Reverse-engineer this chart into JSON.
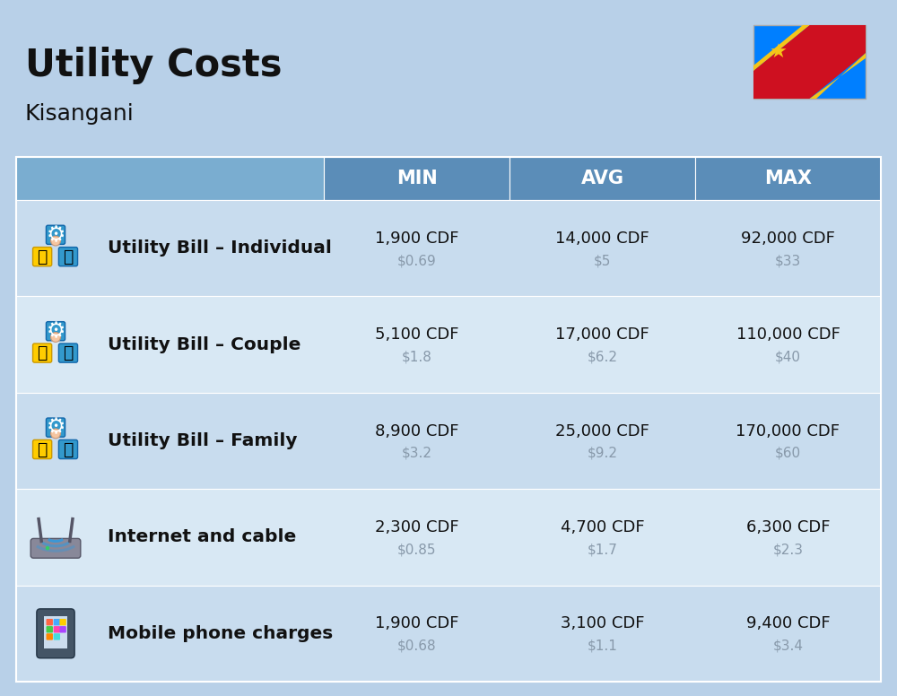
{
  "title": "Utility Costs",
  "subtitle": "Kisangani",
  "background_color": "#b8d0e8",
  "header_color": "#5b8db8",
  "header_text_color": "#ffffff",
  "row_color_odd": "#c8dcee",
  "row_color_even": "#d8e8f4",
  "text_color_dark": "#111111",
  "text_color_usd": "#8899aa",
  "col_headers": [
    "MIN",
    "AVG",
    "MAX"
  ],
  "rows": [
    {
      "label": "Utility Bill – Individual",
      "min_cdf": "1,900 CDF",
      "min_usd": "$0.69",
      "avg_cdf": "14,000 CDF",
      "avg_usd": "$5",
      "max_cdf": "92,000 CDF",
      "max_usd": "$33"
    },
    {
      "label": "Utility Bill – Couple",
      "min_cdf": "5,100 CDF",
      "min_usd": "$1.8",
      "avg_cdf": "17,000 CDF",
      "avg_usd": "$6.2",
      "max_cdf": "110,000 CDF",
      "max_usd": "$40"
    },
    {
      "label": "Utility Bill – Family",
      "min_cdf": "8,900 CDF",
      "min_usd": "$3.2",
      "avg_cdf": "25,000 CDF",
      "avg_usd": "$9.2",
      "max_cdf": "170,000 CDF",
      "max_usd": "$60"
    },
    {
      "label": "Internet and cable",
      "min_cdf": "2,300 CDF",
      "min_usd": "$0.85",
      "avg_cdf": "4,700 CDF",
      "avg_usd": "$1.7",
      "max_cdf": "6,300 CDF",
      "max_usd": "$2.3"
    },
    {
      "label": "Mobile phone charges",
      "min_cdf": "1,900 CDF",
      "min_usd": "$0.68",
      "avg_cdf": "3,100 CDF",
      "avg_usd": "$1.1",
      "max_cdf": "9,400 CDF",
      "max_usd": "$3.4"
    }
  ]
}
